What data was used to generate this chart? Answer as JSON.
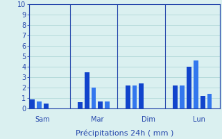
{
  "xlabel": "Précipitations 24h ( mm )",
  "ylim": [
    0,
    10
  ],
  "yticks": [
    0,
    1,
    2,
    3,
    4,
    5,
    6,
    7,
    8,
    9,
    10
  ],
  "background_color": "#daf0f0",
  "grid_color": "#b0d8d8",
  "bar_color_dark": "#1144cc",
  "bar_color_light": "#3377ee",
  "axis_color": "#2244aa",
  "tick_color": "#2244aa",
  "xlabel_color": "#2244aa",
  "bars": [
    {
      "x": 1,
      "height": 0.9,
      "color": "dark"
    },
    {
      "x": 2,
      "height": 0.7,
      "color": "light"
    },
    {
      "x": 3,
      "height": 0.5,
      "color": "dark"
    },
    {
      "x": 8,
      "height": 0.6,
      "color": "dark"
    },
    {
      "x": 9,
      "height": 3.5,
      "color": "dark"
    },
    {
      "x": 10,
      "height": 2.0,
      "color": "light"
    },
    {
      "x": 11,
      "height": 0.7,
      "color": "dark"
    },
    {
      "x": 12,
      "height": 0.7,
      "color": "light"
    },
    {
      "x": 15,
      "height": 2.2,
      "color": "dark"
    },
    {
      "x": 16,
      "height": 2.2,
      "color": "light"
    },
    {
      "x": 17,
      "height": 2.4,
      "color": "dark"
    },
    {
      "x": 22,
      "height": 2.2,
      "color": "dark"
    },
    {
      "x": 23,
      "height": 2.2,
      "color": "light"
    },
    {
      "x": 24,
      "height": 4.0,
      "color": "dark"
    },
    {
      "x": 25,
      "height": 4.6,
      "color": "light"
    },
    {
      "x": 26,
      "height": 1.2,
      "color": "dark"
    },
    {
      "x": 27,
      "height": 1.4,
      "color": "light"
    }
  ],
  "day_labels": [
    {
      "x": 2.5,
      "label": "Sam"
    },
    {
      "x": 10.5,
      "label": "Mar"
    },
    {
      "x": 18.0,
      "label": "Dim"
    },
    {
      "x": 25.5,
      "label": "Lun"
    }
  ],
  "day_vlines": [
    0.5,
    6.5,
    13.5,
    20.5,
    28.5
  ],
  "xlim": [
    0.5,
    28.5
  ],
  "bar_width": 0.7
}
